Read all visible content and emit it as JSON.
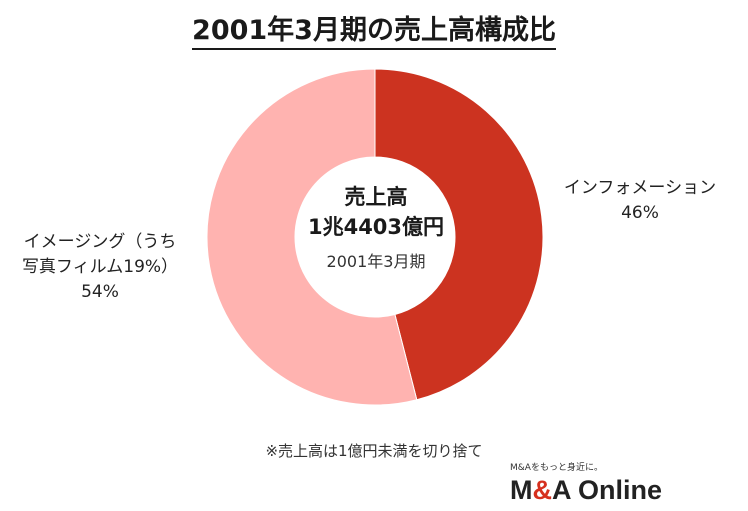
{
  "title": "2001年3月期の売上高構成比",
  "center": {
    "line1": "売上高",
    "line2": "1兆4403億円",
    "line3": "2001年3月期"
  },
  "chart_data": {
    "type": "pie",
    "donut": true,
    "title": "2001年3月期の売上高構成比",
    "slices": [
      {
        "name": "インフォメーション",
        "value": 46,
        "label": "46%",
        "color": "#cc3320"
      },
      {
        "name_lines": [
          "イメージング（うち",
          "写真フィルム19%）"
        ],
        "value": 54,
        "label": "54%",
        "color": "#ffb3b0"
      }
    ]
  },
  "footnote": "※売上高は1億円未満を切り捨て",
  "logo": {
    "tagline": "M&Aをもっと身近に。",
    "brand_prefix": "M",
    "brand_amp": "&",
    "brand_suffix": "A Online"
  }
}
